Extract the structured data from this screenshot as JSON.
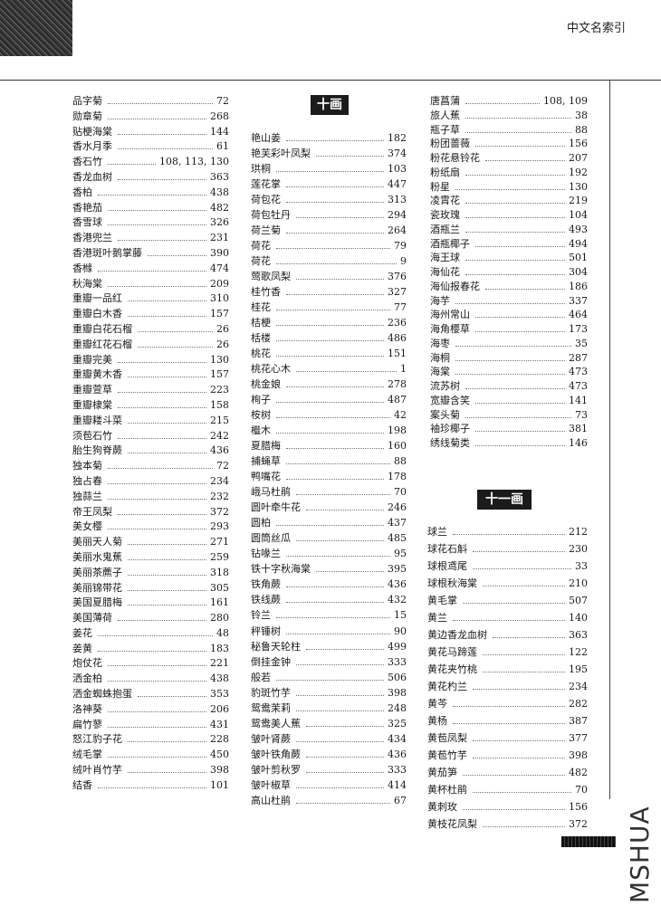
{
  "header": {
    "running_head": "中文名索引"
  },
  "watermark": "MSHUA",
  "columns": [
    {
      "sections": [
        {
          "heading": "",
          "entries": [
            [
              "品字菊",
              "72"
            ],
            [
              "勋章菊",
              "268"
            ],
            [
              "贴梗海棠",
              "144"
            ],
            [
              "香水月季",
              "61"
            ],
            [
              "香石竹",
              "108, 113, 130"
            ],
            [
              "香龙血树",
              "363"
            ],
            [
              "香柏",
              "438"
            ],
            [
              "香艳茄",
              "482"
            ],
            [
              "香雪球",
              "326"
            ],
            [
              "香港兜兰",
              "231"
            ],
            [
              "香港斑叶鹅掌藤",
              "390"
            ],
            [
              "香橼",
              "474"
            ],
            [
              "秋海棠",
              "209"
            ],
            [
              "重瓣一品红",
              "310"
            ],
            [
              "重瓣白木香",
              "157"
            ],
            [
              "重瓣白花石榴",
              "26"
            ],
            [
              "重瓣红花石榴",
              "26"
            ],
            [
              "重瓣完美",
              "130"
            ],
            [
              "重瓣黄木香",
              "157"
            ],
            [
              "重瓣萱草",
              "223"
            ],
            [
              "重瓣棣棠",
              "158"
            ],
            [
              "重瓣耧斗菜",
              "215"
            ],
            [
              "须苞石竹",
              "242"
            ],
            [
              "胎生狗脊蕨",
              "436"
            ],
            [
              "独本菊",
              "72"
            ],
            [
              "独占春",
              "234"
            ],
            [
              "独蒜兰",
              "232"
            ],
            [
              "帝王凤梨",
              "372"
            ],
            [
              "美女樱",
              "293"
            ],
            [
              "美丽天人菊",
              "271"
            ],
            [
              "美丽水鬼蕉",
              "259"
            ],
            [
              "美丽茶藨子",
              "318"
            ],
            [
              "美丽锦带花",
              "305"
            ],
            [
              "美国夏腊梅",
              "161"
            ],
            [
              "美国薄荷",
              "280"
            ],
            [
              "姜花",
              "48"
            ],
            [
              "姜黄",
              "183"
            ],
            [
              "炮仗花",
              "221"
            ],
            [
              "洒金柏",
              "438"
            ],
            [
              "洒金蜘蛛抱蛋",
              "353"
            ],
            [
              "洛神葵",
              "206"
            ],
            [
              "扁竹蓼",
              "431"
            ],
            [
              "怒江豹子花",
              "228"
            ],
            [
              "绒毛掌",
              "450"
            ],
            [
              "绒叶肖竹芋",
              "398"
            ],
            [
              "结香",
              "101"
            ]
          ]
        }
      ]
    },
    {
      "sections": [
        {
          "heading": "十画",
          "entries": [
            [
              "艳山姜",
              "182"
            ],
            [
              "艳芙彩叶凤梨",
              "374"
            ],
            [
              "珙桐",
              "103"
            ],
            [
              "莲花掌",
              "447"
            ],
            [
              "荷包花",
              "313"
            ],
            [
              "荷包牡丹",
              "294"
            ],
            [
              "荷兰菊",
              "264"
            ],
            [
              "荷花",
              "79"
            ],
            [
              "荷花",
              "9"
            ],
            [
              "莺歌凤梨",
              "376"
            ],
            [
              "桂竹香",
              "327"
            ],
            [
              "桂花",
              "77"
            ],
            [
              "桔梗",
              "236"
            ],
            [
              "栝楼",
              "486"
            ],
            [
              "桃花",
              "151"
            ],
            [
              "桃花心木",
              "1"
            ],
            [
              "桃金娘",
              "278"
            ],
            [
              "栒子",
              "487"
            ],
            [
              "桉树",
              "42"
            ],
            [
              "檵木",
              "198"
            ],
            [
              "夏腊梅",
              "160"
            ],
            [
              "捕蝇草",
              "88"
            ],
            [
              "鸭嘴花",
              "178"
            ],
            [
              "峨马杜鹃",
              "70"
            ],
            [
              "圆叶牵牛花",
              "246"
            ],
            [
              "圆柏",
              "437"
            ],
            [
              "圆筒丝瓜",
              "485"
            ],
            [
              "钻喙兰",
              "95"
            ],
            [
              "铁十字秋海棠",
              "395"
            ],
            [
              "铁角蕨",
              "436"
            ],
            [
              "铁线蕨",
              "432"
            ],
            [
              "铃兰",
              "15"
            ],
            [
              "秤锤树",
              "90"
            ],
            [
              "秘鲁天轮柱",
              "499"
            ],
            [
              "倒挂金钟",
              "333"
            ],
            [
              "般若",
              "506"
            ],
            [
              "豹斑竹芋",
              "398"
            ],
            [
              "鸳鸯茉莉",
              "248"
            ],
            [
              "鸳鸯美人蕉",
              "325"
            ],
            [
              "皱叶肾蕨",
              "434"
            ],
            [
              "皱叶铁角蕨",
              "436"
            ],
            [
              "皱叶剪秋罗",
              "333"
            ],
            [
              "皱叶椒草",
              "414"
            ],
            [
              "高山杜鹃",
              "67"
            ]
          ]
        }
      ]
    },
    {
      "sections": [
        {
          "heading": "",
          "entries": [
            [
              "唐菖蒲",
              "108, 109"
            ],
            [
              "旅人蕉",
              "38"
            ],
            [
              "瓶子草",
              "88"
            ],
            [
              "粉团蔷薇",
              "156"
            ],
            [
              "粉花悬铃花",
              "207"
            ],
            [
              "粉纸扇",
              "192"
            ],
            [
              "粉星",
              "130"
            ],
            [
              "凌霄花",
              "219"
            ],
            [
              "瓷玫瑰",
              "104"
            ],
            [
              "酒瓶兰",
              "493"
            ],
            [
              "酒瓶椰子",
              "494"
            ],
            [
              "海王球",
              "501"
            ],
            [
              "海仙花",
              "304"
            ],
            [
              "海仙报春花",
              "186"
            ],
            [
              "海芋",
              "337"
            ],
            [
              "海州常山",
              "464"
            ],
            [
              "海角樱草",
              "173"
            ],
            [
              "海枣",
              "35"
            ],
            [
              "海桐",
              "287"
            ],
            [
              "海棠",
              "473"
            ],
            [
              "流苏树",
              "473"
            ],
            [
              "宽瓣含笑",
              "141"
            ],
            [
              "案头菊",
              "73"
            ],
            [
              "袖珍椰子",
              "381"
            ],
            [
              "绣线菊类",
              "146"
            ]
          ]
        },
        {
          "heading": "十一画",
          "entries": [
            [
              "球兰",
              "212"
            ],
            [
              "球花石斛",
              "230"
            ],
            [
              "球根鸢尾",
              "33"
            ],
            [
              "球根秋海棠",
              "210"
            ],
            [
              "黄毛掌",
              "507"
            ],
            [
              "黄兰",
              "140"
            ],
            [
              "黄边香龙血树",
              "363"
            ],
            [
              "黄花马蹄莲",
              "122"
            ],
            [
              "黄花夹竹桃",
              "195"
            ],
            [
              "黄花杓兰",
              "234"
            ],
            [
              "黄芩",
              "282"
            ],
            [
              "黄杨",
              "387"
            ],
            [
              "黄苞凤梨",
              "377"
            ],
            [
              "黄苞竹芋",
              "398"
            ],
            [
              "黄茄笋",
              "482"
            ],
            [
              "黄杯杜鹃",
              "70"
            ],
            [
              "黄刺玫",
              "156"
            ],
            [
              "黄枝花凤梨",
              "372"
            ]
          ]
        }
      ]
    }
  ]
}
